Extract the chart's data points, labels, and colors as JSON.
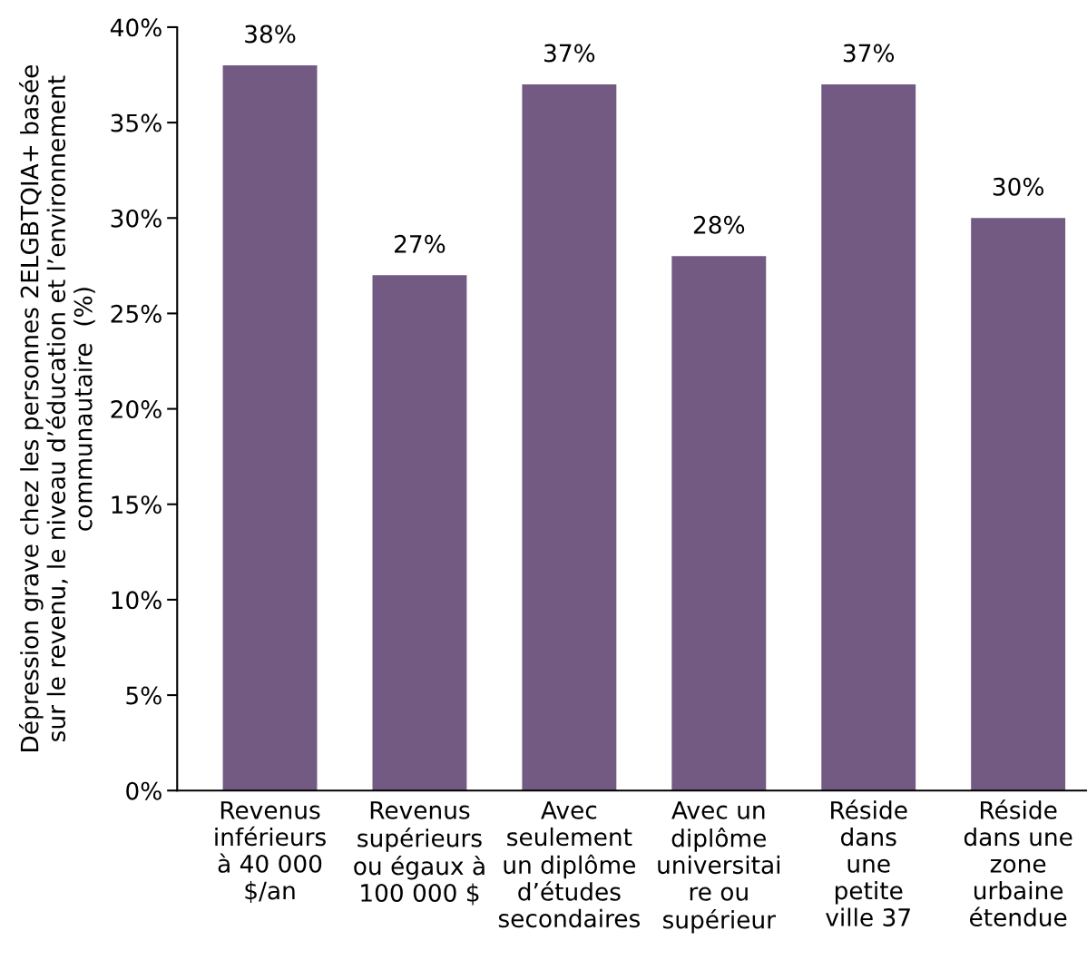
{
  "chart_data": {
    "type": "bar",
    "ylabel": "Dépression grave chez les personnes 2ELGBTQIA+ basée\nsur le revenu, le niveau d’éducation et l’environnement\ncommunautaire  (%)",
    "categories": [
      "Revenus\ninférieurs\nà 40 000\n$/an",
      "Revenus\nsupérieurs\nou égaux à\n100 000 $",
      "Avec\nseulement\nun diplôme\nd’études\nsecondaires",
      "Avec un\ndiplôme\nuniversitai\nre ou\nsupérieur",
      "Réside\ndans\nune\npetite\nville 37",
      "Réside\ndans une\nzone\nurbaine\nétendue"
    ],
    "values": [
      38,
      27,
      37,
      28,
      37,
      30
    ],
    "value_labels": [
      "38%",
      "27%",
      "37%",
      "28%",
      "37%",
      "30%"
    ],
    "color": "#725a82",
    "ylim": [
      0,
      40
    ],
    "yticks": [
      {
        "value": 0,
        "label": "0%"
      },
      {
        "value": 5,
        "label": "5%"
      },
      {
        "value": 10,
        "label": "10%"
      },
      {
        "value": 15,
        "label": "15%"
      },
      {
        "value": 20,
        "label": "20%"
      },
      {
        "value": 25,
        "label": "25%"
      },
      {
        "value": 30,
        "label": "30%"
      },
      {
        "value": 35,
        "label": "35%"
      },
      {
        "value": 40,
        "label": "40%"
      }
    ],
    "grid": false,
    "legend": false
  }
}
